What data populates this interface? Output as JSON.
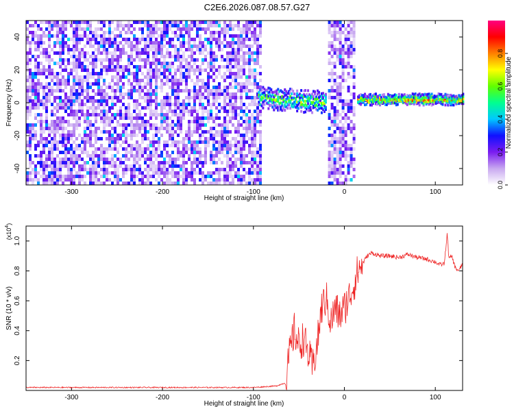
{
  "figure_title": "C2E6.2026.087.08.57.G27",
  "chart_data": [
    {
      "type": "heatmap",
      "name": "spectrogram",
      "xlabel": "Height of straight line (km)",
      "ylabel": "Frequency (Hz)",
      "xlim": [
        -350,
        130
      ],
      "ylim": [
        -50,
        50
      ],
      "x_ticks": [
        -300,
        -200,
        -100,
        0,
        100
      ],
      "y_ticks": [
        -40,
        -20,
        0,
        20,
        40
      ],
      "colorbar": {
        "label": "Normalized spectral amplitude",
        "range": [
          0,
          1
        ],
        "ticks": [
          0.0,
          0.2,
          0.4,
          0.6,
          0.8
        ],
        "colormap": [
          "#ffffff",
          "#c8a8f0",
          "#7a1cf0",
          "#1010ff",
          "#00c8ff",
          "#00ff90",
          "#60ff00",
          "#ffff00",
          "#ff8000",
          "#ff0000",
          "#ff0080"
        ]
      },
      "regions": [
        {
          "description": "noise",
          "x_range": [
            -350,
            -92
          ],
          "freq_range": [
            -50,
            50
          ],
          "amplitude": 0.15
        },
        {
          "description": "signal onset",
          "x_range": [
            -95,
            -20
          ],
          "freq_center": [
            3,
            0
          ],
          "amplitude": 0.55
        },
        {
          "description": "noise gap",
          "x_range": [
            -18,
            12
          ],
          "freq_range": [
            -50,
            50
          ],
          "amplitude": 0.15
        },
        {
          "description": "steady tone",
          "x_range": [
            14,
            130
          ],
          "freq_center": [
            2,
            2
          ],
          "amplitude": 0.75
        }
      ]
    },
    {
      "type": "line",
      "name": "snr",
      "xlabel": "Height of straight line (km)",
      "ylabel": "SNR (10 * v/v)",
      "y_multiplier_label": "(x10",
      "y_multiplier_exp": "4",
      "xlim": [
        -350,
        130
      ],
      "ylim": [
        0,
        1.1
      ],
      "x_ticks": [
        -300,
        -200,
        -100,
        0,
        100
      ],
      "y_ticks": [
        0.2,
        0.4,
        0.6,
        0.8,
        1.0
      ],
      "y_tick_labels": [
        "0.2",
        "0.4",
        "0.6",
        "0.8",
        "1.0"
      ],
      "series": [
        {
          "name": "SNR",
          "color": "#ee2222",
          "x": [
            -350,
            -300,
            -250,
            -200,
            -150,
            -100,
            -75,
            -65,
            -60,
            -55,
            -50,
            -45,
            -40,
            -35,
            -30,
            -25,
            -20,
            -15,
            -10,
            -5,
            0,
            5,
            10,
            15,
            20,
            25,
            30,
            40,
            50,
            60,
            70,
            80,
            90,
            100,
            105,
            110,
            113,
            115,
            118,
            122,
            126,
            130
          ],
          "values": [
            0.02,
            0.02,
            0.02,
            0.02,
            0.02,
            0.02,
            0.03,
            0.05,
            0.25,
            0.4,
            0.3,
            0.35,
            0.25,
            0.15,
            0.3,
            0.55,
            0.62,
            0.45,
            0.55,
            0.5,
            0.55,
            0.62,
            0.7,
            0.8,
            0.85,
            0.9,
            0.92,
            0.9,
            0.9,
            0.89,
            0.91,
            0.89,
            0.88,
            0.86,
            0.84,
            0.85,
            1.05,
            0.88,
            0.9,
            0.82,
            0.8,
            0.85
          ]
        }
      ]
    }
  ]
}
